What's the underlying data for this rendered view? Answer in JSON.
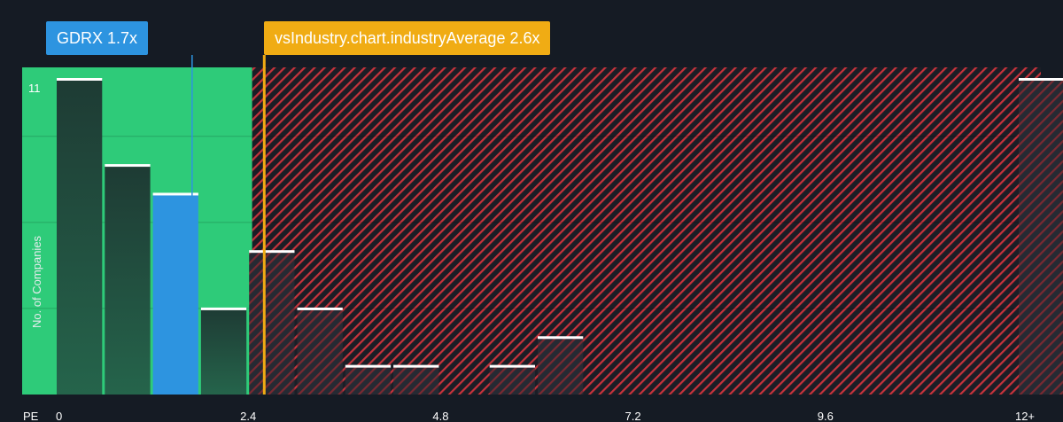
{
  "chart_data": {
    "type": "bar",
    "x_axis_label": "PE",
    "y_axis_label": "No. of Companies",
    "x_ticks": [
      "0",
      "2.4",
      "4.8",
      "7.2",
      "9.6",
      "12+"
    ],
    "x_tick_values": [
      0,
      2.4,
      4.8,
      7.2,
      9.6,
      12
    ],
    "xlim": [
      0,
      12
    ],
    "y_max_label": "11",
    "ylim": [
      0,
      11
    ],
    "grid": true,
    "bars": [
      {
        "x0": 0.0,
        "x1": 0.6,
        "value": 11
      },
      {
        "x0": 0.6,
        "x1": 1.2,
        "value": 8
      },
      {
        "x0": 1.2,
        "x1": 1.8,
        "value": 7,
        "highlight": true
      },
      {
        "x0": 1.8,
        "x1": 2.4,
        "value": 3
      },
      {
        "x0": 2.4,
        "x1": 3.0,
        "value": 5
      },
      {
        "x0": 3.0,
        "x1": 3.6,
        "value": 3
      },
      {
        "x0": 3.6,
        "x1": 4.2,
        "value": 1
      },
      {
        "x0": 4.2,
        "x1": 4.8,
        "value": 1
      },
      {
        "x0": 5.4,
        "x1": 6.0,
        "value": 1
      },
      {
        "x0": 6.0,
        "x1": 6.6,
        "value": 2
      },
      {
        "x0": 12.0,
        "x1": 12.6,
        "value": 11
      }
    ],
    "company": {
      "label": "GDRX 1.7x",
      "value": 1.7
    },
    "industry_average": {
      "label": "vsIndustry.chart.industryAverage 2.6x",
      "value": 2.6
    },
    "fair_zone_end": 2.45
  },
  "colors": {
    "background": "#151b24",
    "fair_zone": "#2ecb79",
    "bar_dark": "#1f4a3a",
    "bar_highlight": "#2d94e0",
    "overvalued_hatch": "#d0343e",
    "industry_line": "#f0ac14",
    "bar_cap": "#ffffff"
  }
}
